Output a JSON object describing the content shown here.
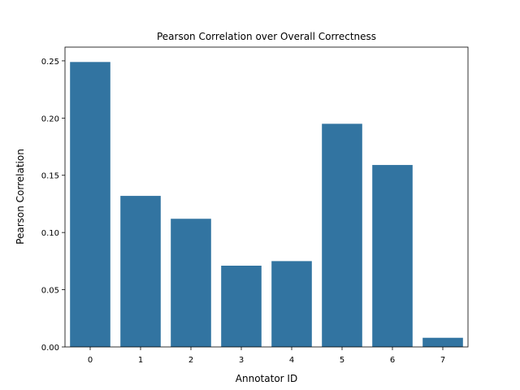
{
  "chart_data": {
    "type": "bar",
    "title": "Pearson Correlation over Overall Correctness",
    "xlabel": "Annotator ID",
    "ylabel": "Pearson Correlation",
    "categories": [
      "0",
      "1",
      "2",
      "3",
      "4",
      "5",
      "6",
      "7"
    ],
    "values": [
      0.249,
      0.132,
      0.112,
      0.071,
      0.075,
      0.195,
      0.159,
      0.008
    ],
    "ylim": [
      0,
      0.262
    ],
    "yticks": [
      0.0,
      0.05,
      0.1,
      0.15,
      0.2,
      0.25
    ],
    "ytick_labels": [
      "0.00",
      "0.05",
      "0.10",
      "0.15",
      "0.20",
      "0.25"
    ],
    "bar_color": "#3274a1",
    "grid": false
  }
}
